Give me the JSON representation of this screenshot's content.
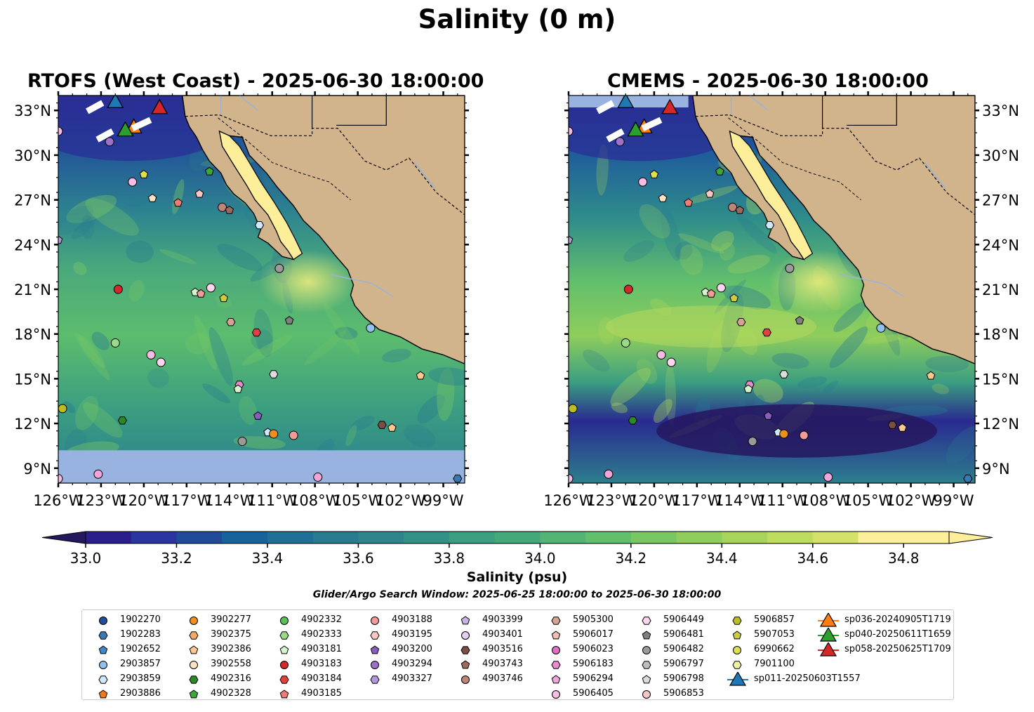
{
  "figure": {
    "title": "Salinity (0 m)",
    "panels": [
      {
        "title": "RTOFS (West Coast) - 2025-06-30 18:00:00"
      },
      {
        "title": "CMEMS - 2025-06-30 18:00:00"
      }
    ],
    "lat_ticks": [
      "9°N",
      "12°N",
      "15°N",
      "18°N",
      "21°N",
      "24°N",
      "27°N",
      "30°N",
      "33°N"
    ],
    "lon_ticks": [
      "126°W",
      "123°W",
      "120°W",
      "117°W",
      "114°W",
      "111°W",
      "108°W",
      "105°W",
      "102°W",
      "99°W"
    ],
    "colorbar": {
      "label": "Salinity (psu)",
      "ticks": [
        "33.0",
        "33.2",
        "33.4",
        "33.6",
        "33.8",
        "34.0",
        "34.2",
        "34.4",
        "34.6",
        "34.8"
      ],
      "extend": "both"
    },
    "search_window": "Glider/Argo Search Window: 2025-06-25 18:00:00 to 2025-06-30 18:00:00",
    "colors": {
      "land": "#d2b48c",
      "no_data": "#99b3e0",
      "coast": "#000000",
      "rivers": "#9ab3d5",
      "colormap": [
        "#26185f",
        "#2a1f8a",
        "#2a36a0",
        "#1f4b99",
        "#18629b",
        "#206f96",
        "#287b90",
        "#2e868c",
        "#339287",
        "#3a9e81",
        "#44a97a",
        "#52b573",
        "#62bf6c",
        "#78c763",
        "#8fcd5c",
        "#a7d45a",
        "#bedc5e",
        "#d3e36a",
        "#fdee99"
      ]
    }
  },
  "legend": {
    "items": [
      {
        "label": "1902270",
        "marker": "circle",
        "color": "#1f4e9a"
      },
      {
        "label": "1902283",
        "marker": "hexagon",
        "color": "#3a78b0"
      },
      {
        "label": "1902652",
        "marker": "pentagon",
        "color": "#3c88c8"
      },
      {
        "label": "2903857",
        "marker": "circle",
        "color": "#90c0ec"
      },
      {
        "label": "2903859",
        "marker": "hexagon",
        "color": "#cfe8fa"
      },
      {
        "label": "2903886",
        "marker": "pentagon",
        "color": "#ef7a1a"
      },
      {
        "label": "3902277",
        "marker": "circle",
        "color": "#f0901c"
      },
      {
        "label": "3902375",
        "marker": "hexagon",
        "color": "#f4a866"
      },
      {
        "label": "3902386",
        "marker": "pentagon",
        "color": "#fbc98f"
      },
      {
        "label": "3902558",
        "marker": "circle",
        "color": "#fde2c4"
      },
      {
        "label": "4902316",
        "marker": "hexagon",
        "color": "#2a8a2a"
      },
      {
        "label": "4902328",
        "marker": "pentagon",
        "color": "#38a838"
      },
      {
        "label": "4902332",
        "marker": "circle",
        "color": "#58c058"
      },
      {
        "label": "4902333",
        "marker": "hexagon",
        "color": "#9ad88a"
      },
      {
        "label": "4903181",
        "marker": "pentagon",
        "color": "#d5f4cc"
      },
      {
        "label": "4903183",
        "marker": "circle",
        "color": "#d62728"
      },
      {
        "label": "4903184",
        "marker": "hexagon",
        "color": "#e2403e"
      },
      {
        "label": "4903185",
        "marker": "pentagon",
        "color": "#f27a76"
      },
      {
        "label": "4903188",
        "marker": "circle",
        "color": "#f29a98"
      },
      {
        "label": "4903195",
        "marker": "hexagon",
        "color": "#fcc6c2"
      },
      {
        "label": "4903200",
        "marker": "pentagon",
        "color": "#8a5cc0"
      },
      {
        "label": "4903294",
        "marker": "circle",
        "color": "#9c72c8"
      },
      {
        "label": "4903327",
        "marker": "hexagon",
        "color": "#b29ad8"
      },
      {
        "label": "4903399",
        "marker": "pentagon",
        "color": "#c7b3e4"
      },
      {
        "label": "4903401",
        "marker": "circle",
        "color": "#e1cff2"
      },
      {
        "label": "4903516",
        "marker": "hexagon",
        "color": "#7a4e44"
      },
      {
        "label": "4903743",
        "marker": "pentagon",
        "color": "#9a6a5e"
      },
      {
        "label": "4903746",
        "marker": "circle",
        "color": "#c08578"
      },
      {
        "label": "5905300",
        "marker": "hexagon",
        "color": "#d6a294"
      },
      {
        "label": "5906017",
        "marker": "pentagon",
        "color": "#ecc0b4"
      },
      {
        "label": "5906023",
        "marker": "circle",
        "color": "#e070c0"
      },
      {
        "label": "5906183",
        "marker": "hexagon",
        "color": "#e88acc"
      },
      {
        "label": "5906294",
        "marker": "pentagon",
        "color": "#f2a6d8"
      },
      {
        "label": "5906405",
        "marker": "circle",
        "color": "#f6bde4"
      },
      {
        "label": "5906449",
        "marker": "hexagon",
        "color": "#fbd5ee"
      },
      {
        "label": "5906481",
        "marker": "pentagon",
        "color": "#7f7f7f"
      },
      {
        "label": "5906482",
        "marker": "circle",
        "color": "#9a9a9a"
      },
      {
        "label": "5906797",
        "marker": "hexagon",
        "color": "#bdbdbd"
      },
      {
        "label": "5906798",
        "marker": "pentagon",
        "color": "#dcdcdc"
      },
      {
        "label": "5906853",
        "marker": "circle",
        "color": "#f3c6c6"
      },
      {
        "label": "5906857",
        "marker": "hexagon",
        "color": "#bcbd22"
      },
      {
        "label": "5907053",
        "marker": "pentagon",
        "color": "#cccc44"
      },
      {
        "label": "6990662",
        "marker": "circle",
        "color": "#dfe050"
      },
      {
        "label": "7901100",
        "marker": "hexagon",
        "color": "#eef2a2"
      },
      {
        "label": "sp011-20250603T1557",
        "marker": "triangle",
        "color": "#1f77b4"
      },
      {
        "label": "sp036-20240905T1719",
        "marker": "triangle",
        "color": "#ff7f0e"
      },
      {
        "label": "sp040-20250611T1659",
        "marker": "triangle",
        "color": "#2ca02c"
      },
      {
        "label": "sp058-20250625T1709",
        "marker": "triangle",
        "color": "#d62728"
      }
    ]
  },
  "chart_data": {
    "type": "map",
    "variable": "Salinity (0 m)",
    "units": "psu",
    "lon_range": [
      -126,
      -97.5
    ],
    "lat_range": [
      8,
      34
    ],
    "clim": [
      33.0,
      34.9
    ],
    "contour_levels": [
      33.0,
      33.1,
      33.2,
      33.3,
      33.4,
      33.5,
      33.6,
      33.7,
      33.8,
      33.9,
      34.0,
      34.1,
      34.2,
      34.3,
      34.4,
      34.5,
      34.6,
      34.7,
      34.8,
      34.9
    ],
    "rtofs_southern_limit_lat": 10.2,
    "points": [
      {
        "id": "1902270",
        "lon": -123.2,
        "lat": 8.6,
        "color": "#f2a6d8",
        "marker": "circle"
      },
      {
        "id": "1902283",
        "lon": -122.4,
        "lat": 30.9,
        "color": "#9c72c8",
        "marker": "circle"
      },
      {
        "id": "2903857",
        "lon": -120.8,
        "lat": 28.2,
        "color": "#f6bde4",
        "marker": "circle"
      },
      {
        "id": "2903859",
        "lon": -120.0,
        "lat": 28.7,
        "color": "#dfe050",
        "marker": "pentagon"
      },
      {
        "id": "3902375",
        "lon": -119.4,
        "lat": 27.1,
        "color": "#fde2c4",
        "marker": "pentagon"
      },
      {
        "id": "3902386",
        "lon": -117.6,
        "lat": 26.8,
        "color": "#f27a76",
        "marker": "pentagon"
      },
      {
        "id": "3902558",
        "lon": -116.1,
        "lat": 27.4,
        "color": "#fcc6c2",
        "marker": "pentagon"
      },
      {
        "id": "4902316",
        "lon": -115.4,
        "lat": 28.9,
        "color": "#38a838",
        "marker": "pentagon"
      },
      {
        "id": "4902328",
        "lon": -114.5,
        "lat": 26.5,
        "color": "#c08578",
        "marker": "circle"
      },
      {
        "id": "4902332",
        "lon": -114.0,
        "lat": 26.3,
        "color": "#9a6a5e",
        "marker": "pentagon"
      },
      {
        "id": "4903181",
        "lon": -111.9,
        "lat": 25.3,
        "color": "#cfe8fa",
        "marker": "hexagon"
      },
      {
        "id": "4903183",
        "lon": -121.8,
        "lat": 21.0,
        "color": "#d62728",
        "marker": "circle"
      },
      {
        "id": "4903184",
        "lon": -116.4,
        "lat": 20.8,
        "color": "#d5f4cc",
        "marker": "pentagon"
      },
      {
        "id": "4903185",
        "lon": -116.0,
        "lat": 20.7,
        "color": "#f29a98",
        "marker": "pentagon"
      },
      {
        "id": "4903188",
        "lon": -115.3,
        "lat": 21.1,
        "color": "#fbd5ee",
        "marker": "circle"
      },
      {
        "id": "4903195",
        "lon": -114.4,
        "lat": 20.4,
        "color": "#cccc44",
        "marker": "pentagon"
      },
      {
        "id": "4903200",
        "lon": -110.5,
        "lat": 22.4,
        "color": "#9a9a9a",
        "marker": "circle"
      },
      {
        "id": "4903294",
        "lon": -109.8,
        "lat": 18.9,
        "color": "#7f7f7f",
        "marker": "pentagon"
      },
      {
        "id": "4903327",
        "lon": -112.1,
        "lat": 18.1,
        "color": "#e2403e",
        "marker": "hexagon"
      },
      {
        "id": "4903399",
        "lon": -113.9,
        "lat": 18.8,
        "color": "#d6a294",
        "marker": "hexagon"
      },
      {
        "id": "4903401",
        "lon": -122.0,
        "lat": 17.4,
        "color": "#9ad88a",
        "marker": "circle"
      },
      {
        "id": "4903516",
        "lon": -119.5,
        "lat": 16.6,
        "color": "#f6bde4",
        "marker": "circle"
      },
      {
        "id": "4903743",
        "lon": -118.8,
        "lat": 16.1,
        "color": "#fbd5ee",
        "marker": "circle"
      },
      {
        "id": "4903746",
        "lon": -110.9,
        "lat": 15.3,
        "color": "#dcdcdc",
        "marker": "hexagon"
      },
      {
        "id": "5905300",
        "lon": -113.3,
        "lat": 14.6,
        "color": "#e88acc",
        "marker": "hexagon"
      },
      {
        "id": "5906017",
        "lon": -113.4,
        "lat": 14.3,
        "color": "#d5f4cc",
        "marker": "pentagon"
      },
      {
        "id": "5906023",
        "lon": -125.7,
        "lat": 13.0,
        "color": "#bcbd22",
        "marker": "circle"
      },
      {
        "id": "5906183",
        "lon": -121.5,
        "lat": 12.2,
        "color": "#2a8a2a",
        "marker": "hexagon"
      },
      {
        "id": "5906294",
        "lon": -112.0,
        "lat": 12.5,
        "color": "#8a5cc0",
        "marker": "pentagon"
      },
      {
        "id": "5906405",
        "lon": -113.1,
        "lat": 10.8,
        "color": "#9a9a9a",
        "marker": "circle"
      },
      {
        "id": "5906449",
        "lon": -111.3,
        "lat": 11.4,
        "color": "#cfe8fa",
        "marker": "pentagon"
      },
      {
        "id": "5906481",
        "lon": -110.9,
        "lat": 11.3,
        "color": "#f0901c",
        "marker": "circle"
      },
      {
        "id": "5906482",
        "lon": -109.5,
        "lat": 11.2,
        "color": "#f29a98",
        "marker": "circle"
      },
      {
        "id": "5906797",
        "lon": -103.3,
        "lat": 11.9,
        "color": "#7a4e44",
        "marker": "hexagon"
      },
      {
        "id": "5906798",
        "lon": -102.6,
        "lat": 11.7,
        "color": "#fbc98f",
        "marker": "pentagon"
      },
      {
        "id": "5906853",
        "lon": -107.8,
        "lat": 8.4,
        "color": "#f2a6d8",
        "marker": "circle"
      },
      {
        "id": "5906857",
        "lon": -104.1,
        "lat": 18.4,
        "color": "#90c0ec",
        "marker": "circle"
      },
      {
        "id": "5907053",
        "lon": -100.6,
        "lat": 15.2,
        "color": "#fbc98f",
        "marker": "pentagon"
      },
      {
        "id": "6990662",
        "lon": -126.0,
        "lat": 31.6,
        "color": "#f6bde4",
        "marker": "circle"
      },
      {
        "id": "7901100",
        "lon": -126.0,
        "lat": 24.3,
        "color": "#b29ad8",
        "marker": "pentagon"
      },
      {
        "id": "7901100b",
        "lon": -126.0,
        "lat": 8.3,
        "color": "#f6bde4",
        "marker": "circle"
      },
      {
        "id": "2903886",
        "lon": -98.0,
        "lat": 8.3,
        "color": "#3a78b0",
        "marker": "hexagon"
      }
    ],
    "gliders": [
      {
        "id": "sp011-20250603T1557",
        "lon": -122.0,
        "lat": 33.6,
        "color": "#1f77b4"
      },
      {
        "id": "sp036-20240905T1719",
        "lon": -120.7,
        "lat": 31.9,
        "color": "#ff7f0e"
      },
      {
        "id": "sp040-20250611T1659",
        "lon": -121.3,
        "lat": 31.7,
        "color": "#2ca02c"
      },
      {
        "id": "sp058-20250625T1709",
        "lon": -118.9,
        "lat": 33.2,
        "color": "#d62728"
      }
    ]
  }
}
